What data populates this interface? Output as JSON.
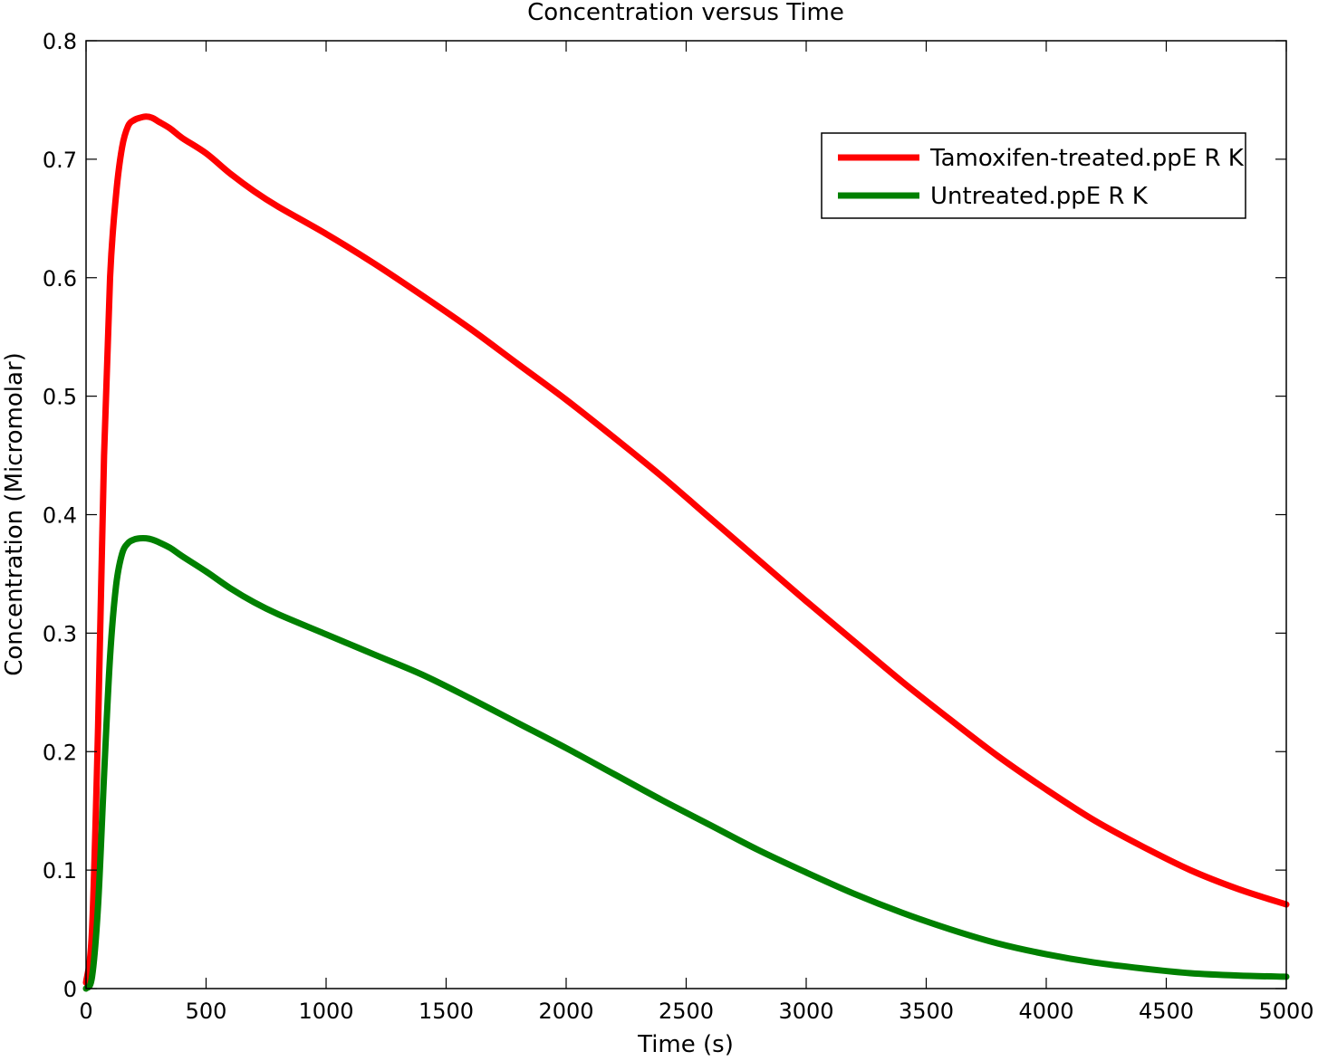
{
  "chart_data": {
    "type": "line",
    "title": "Concentration versus Time",
    "xlabel": "Time (s)",
    "ylabel": "Concentration (Micromolar)",
    "xlim": [
      0,
      5000
    ],
    "ylim": [
      0,
      0.8
    ],
    "xticks": [
      0,
      500,
      1000,
      1500,
      2000,
      2500,
      3000,
      3500,
      4000,
      4500,
      5000
    ],
    "yticks": [
      0,
      0.1,
      0.2,
      0.3,
      0.4,
      0.5,
      0.6,
      0.7,
      0.8
    ],
    "xtick_labels": [
      "0",
      "500",
      "1000",
      "1500",
      "2000",
      "2500",
      "3000",
      "3500",
      "4000",
      "4500",
      "5000"
    ],
    "ytick_labels": [
      "0",
      "0.1",
      "0.2",
      "0.3",
      "0.4",
      "0.5",
      "0.6",
      "0.7",
      "0.8"
    ],
    "grid": false,
    "legend_position": "top-right",
    "series": [
      {
        "name": "Tamoxifen-treated.ppE R K",
        "color": "#ff0000",
        "x": [
          0,
          25,
          50,
          75,
          100,
          125,
          150,
          175,
          200,
          225,
          250,
          275,
          300,
          350,
          400,
          500,
          600,
          700,
          800,
          1000,
          1200,
          1400,
          1600,
          1800,
          2000,
          2200,
          2400,
          2600,
          2800,
          3000,
          3200,
          3400,
          3600,
          3800,
          4000,
          4200,
          4400,
          4600,
          4800,
          5000
        ],
        "y": [
          0.005,
          0.05,
          0.22,
          0.45,
          0.6,
          0.67,
          0.71,
          0.728,
          0.733,
          0.735,
          0.736,
          0.735,
          0.732,
          0.726,
          0.718,
          0.705,
          0.688,
          0.673,
          0.66,
          0.637,
          0.612,
          0.585,
          0.557,
          0.527,
          0.497,
          0.465,
          0.432,
          0.397,
          0.362,
          0.327,
          0.293,
          0.259,
          0.227,
          0.196,
          0.168,
          0.142,
          0.12,
          0.1,
          0.084,
          0.071
        ]
      },
      {
        "name": "Untreated.ppE R K",
        "color": "#008000",
        "x": [
          0,
          25,
          50,
          75,
          100,
          125,
          150,
          175,
          200,
          225,
          250,
          275,
          300,
          350,
          400,
          500,
          600,
          700,
          800,
          1000,
          1200,
          1400,
          1600,
          1800,
          2000,
          2200,
          2400,
          2600,
          2800,
          3000,
          3200,
          3400,
          3600,
          3800,
          4000,
          4200,
          4400,
          4600,
          4800,
          5000
        ],
        "y": [
          0.0,
          0.01,
          0.07,
          0.18,
          0.28,
          0.34,
          0.367,
          0.376,
          0.379,
          0.38,
          0.38,
          0.379,
          0.377,
          0.372,
          0.365,
          0.352,
          0.338,
          0.326,
          0.316,
          0.299,
          0.282,
          0.265,
          0.245,
          0.224,
          0.203,
          0.181,
          0.159,
          0.138,
          0.117,
          0.098,
          0.08,
          0.064,
          0.05,
          0.038,
          0.029,
          0.022,
          0.017,
          0.013,
          0.011,
          0.01
        ]
      }
    ]
  }
}
